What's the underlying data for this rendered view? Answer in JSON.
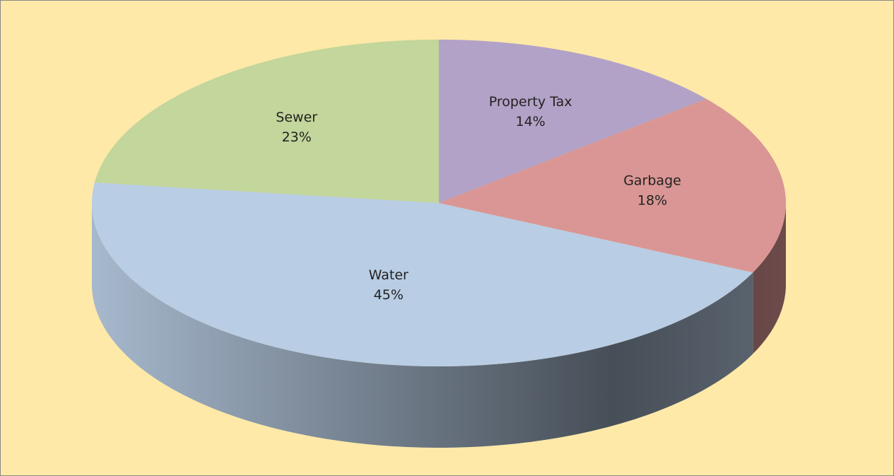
{
  "chart_data": {
    "type": "pie",
    "categories": [
      "Property Tax",
      "Garbage",
      "Water",
      "Sewer"
    ],
    "values": [
      14,
      18,
      45,
      23
    ],
    "value_labels": [
      "14%",
      "18%",
      "45%",
      "23%"
    ],
    "colors": [
      "#b3a2c7",
      "#d99694",
      "#b9cde4",
      "#c3d69b"
    ],
    "background": "#fee9a8"
  }
}
